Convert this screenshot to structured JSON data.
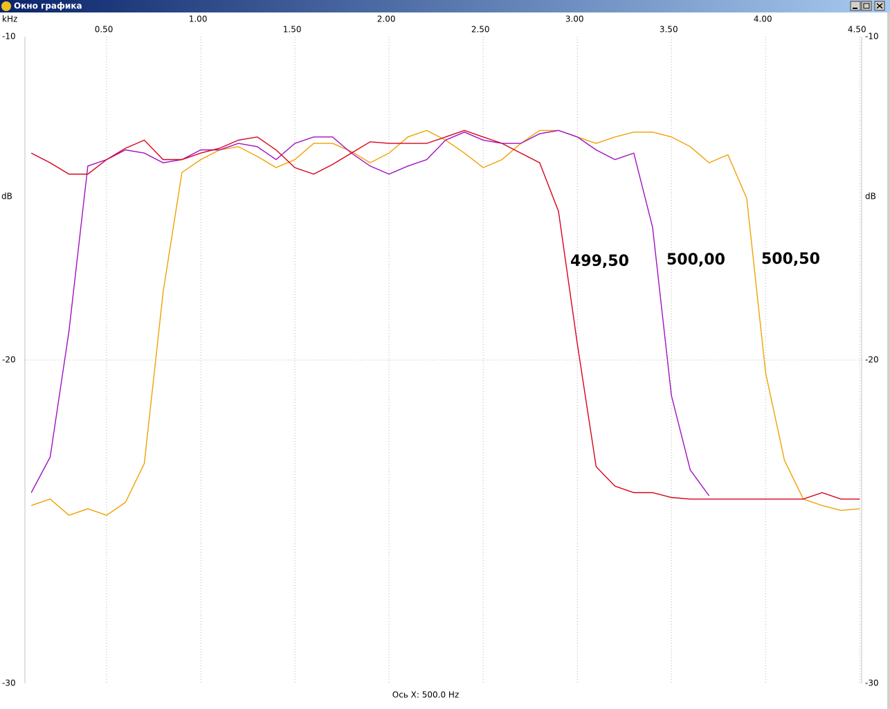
{
  "window": {
    "title": "Окно графика",
    "status": "Ось X: 500.0 Hz"
  },
  "chart_data": {
    "type": "line",
    "x_unit": "kHz",
    "y_unit": "dB",
    "x": [
      0.1,
      0.2,
      0.3,
      0.4,
      0.5,
      0.6,
      0.7,
      0.8,
      0.9,
      1.0,
      1.1,
      1.2,
      1.3,
      1.4,
      1.5,
      1.6,
      1.7,
      1.8,
      1.9,
      2.0,
      2.1,
      2.2,
      2.3,
      2.4,
      2.5,
      2.6,
      2.7,
      2.8,
      2.9,
      3.0,
      3.1,
      3.2,
      3.3,
      3.4,
      3.5,
      3.6,
      3.7,
      3.8,
      3.9,
      4.0,
      4.1,
      4.2,
      4.3,
      4.4,
      4.5
    ],
    "series": [
      {
        "name": "500,50",
        "color": "#f0a000",
        "values": [
          -24.5,
          -24.3,
          -24.8,
          -24.6,
          -24.8,
          -24.4,
          -23.2,
          -17.9,
          -14.2,
          -13.8,
          -13.5,
          -13.4,
          -13.7,
          -14.05,
          -13.8,
          -13.3,
          -13.3,
          -13.55,
          -13.9,
          -13.6,
          -13.1,
          -12.9,
          -13.2,
          -13.6,
          -14.05,
          -13.8,
          -13.3,
          -12.9,
          -12.9,
          -13.1,
          -13.3,
          -13.1,
          -12.95,
          -12.95,
          -13.1,
          -13.4,
          -13.9,
          -13.65,
          -15.0,
          -20.4,
          -23.1,
          -24.3,
          -24.5,
          -24.65,
          -24.6
        ]
      },
      {
        "name": "500,00",
        "color": "#a010c0",
        "values": [
          -24.1,
          -23.0,
          -19.1,
          -14.0,
          -13.8,
          -13.5,
          -13.6,
          -13.9,
          -13.8,
          -13.5,
          -13.5,
          -13.3,
          -13.4,
          -13.8,
          -13.3,
          -13.1,
          -13.1,
          -13.6,
          -14.0,
          -14.25,
          -14.0,
          -13.8,
          -13.2,
          -12.95,
          -13.2,
          -13.3,
          -13.3,
          -13.0,
          -12.9,
          -13.1,
          -13.5,
          -13.8,
          -13.6,
          -15.9,
          -21.1,
          -23.4,
          -24.2,
          null,
          null,
          null,
          null,
          null,
          null,
          null,
          null
        ]
      },
      {
        "name": "499,50",
        "color": "#d8001c",
        "values": [
          -13.6,
          -13.9,
          -14.25,
          -14.25,
          -13.8,
          -13.45,
          -13.2,
          -13.8,
          -13.8,
          -13.6,
          -13.45,
          -13.2,
          -13.1,
          -13.5,
          -14.05,
          -14.25,
          -13.95,
          -13.6,
          -13.25,
          -13.3,
          -13.3,
          -13.3,
          -13.1,
          -12.9,
          -13.1,
          -13.3,
          -13.6,
          -13.9,
          -15.4,
          -19.5,
          -23.3,
          -23.9,
          -24.1,
          -24.1,
          -24.25,
          -24.3,
          -24.3,
          -24.3,
          -24.3,
          -24.3,
          -24.3,
          -24.3,
          -24.1,
          -24.3,
          -24.3
        ]
      }
    ],
    "xlim": [
      0.066,
      4.51
    ],
    "xticks": [
      {
        "value": 0.5,
        "label": "0.50"
      },
      {
        "value": 1.0,
        "label": "1.00"
      },
      {
        "value": 1.5,
        "label": "1.50"
      },
      {
        "value": 2.0,
        "label": "2.00"
      },
      {
        "value": 2.5,
        "label": "2.50"
      },
      {
        "value": 3.0,
        "label": "3.00"
      },
      {
        "value": 3.5,
        "label": "3.50"
      },
      {
        "value": 4.0,
        "label": "4.00"
      },
      {
        "value": 4.5,
        "label": "4.50"
      }
    ],
    "ylim": [
      -30,
      -10
    ],
    "yticks": [
      -10,
      -20,
      -30
    ],
    "grid": true
  }
}
